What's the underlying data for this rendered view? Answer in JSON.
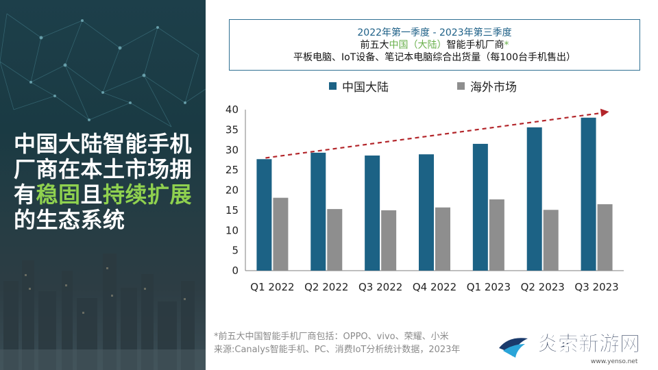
{
  "headline": {
    "line1": "中国大陆智能手机",
    "line2": "厂商在本土市场拥",
    "line3_a": "有",
    "line3_b": "稳固",
    "line3_c": "且",
    "line3_d": "持续扩展",
    "line4": "的生态系统"
  },
  "header": {
    "period": "2022年第一季度 - 2023年第三季度",
    "subject_a": "前五大",
    "subject_b": "中国（大陆）",
    "subject_c": "智能手机厂商",
    "subject_d": "*",
    "metric": "平板电脑、IoT设备、笔记本电脑综合出货量（每100台手机售出）"
  },
  "colors": {
    "mainland": "#1c6285",
    "overseas": "#8e8e8e",
    "trend": "#b3262b",
    "accent": "#6ab04c"
  },
  "chart_data": {
    "type": "bar",
    "title": "2022年第一季度 - 2023年第三季度 前五大中国（大陆）智能手机厂商* 平板电脑、IoT设备、笔记本电脑综合出货量（每100台手机售出）",
    "categories": [
      "Q1 2022",
      "Q2 2022",
      "Q3 2022",
      "Q4 2022",
      "Q1 2023",
      "Q2 2023",
      "Q3 2023"
    ],
    "series": [
      {
        "name": "中国大陆",
        "values": [
          27.7,
          29.3,
          28.6,
          28.9,
          31.5,
          35.6,
          38.0
        ]
      },
      {
        "name": "海外市场",
        "values": [
          18.1,
          15.3,
          15.0,
          15.7,
          17.7,
          15.1,
          16.5
        ]
      }
    ],
    "ylim": [
      0,
      40
    ],
    "yticks": [
      "0",
      "5",
      "10",
      "15",
      "20",
      "25",
      "30",
      "35",
      "40"
    ],
    "legend_position": "top",
    "trend": {
      "from_value": 28,
      "to_value": 40,
      "style": "dashed arrow"
    }
  },
  "footnote": {
    "line1": "*前五大中国智能手机厂商包括：OPPO、vivo、荣耀、小米",
    "line2": "来源:Canalys智能手机、PC、消费IoT分析统计数据，2023年"
  },
  "watermark": {
    "text": "炎索新游网",
    "url": "www.yenso.net"
  }
}
